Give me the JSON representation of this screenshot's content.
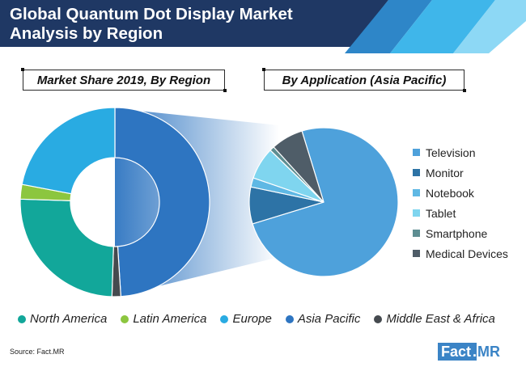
{
  "title": "Global Quantum Dot Display Market Analysis by Region",
  "left_box_label": "Market Share 2019, By Region",
  "right_box_label": "By Application (Asia Pacific)",
  "source": "Source: Fact.MR",
  "logo": {
    "left": "Fact",
    "dot": ".",
    "right": "MR"
  },
  "colors": {
    "banner": "#1f3864",
    "accent_light": "#29abe2",
    "accent_mid": "#5ac8f0"
  },
  "chart_data": [
    {
      "type": "donut",
      "title": "Market Share 2019, By Region",
      "series": [
        {
          "name": "Asia Pacific",
          "value": 49,
          "color": "#2e75c1"
        },
        {
          "name": "Middle East & Africa",
          "value": 1.5,
          "color": "#454a4f"
        },
        {
          "name": "North America",
          "value": 25,
          "color": "#12a79a"
        },
        {
          "name": "Latin America",
          "value": 2.5,
          "color": "#8cc63f"
        },
        {
          "name": "Europe",
          "value": 22,
          "color": "#29abe2"
        }
      ],
      "legend_position": "bottom"
    },
    {
      "type": "pie",
      "title": "By Application (Asia Pacific)",
      "series": [
        {
          "name": "Television",
          "value": 75,
          "color": "#4ea1db"
        },
        {
          "name": "Monitor",
          "value": 8,
          "color": "#2d73a6"
        },
        {
          "name": "Notebook",
          "value": 2,
          "color": "#5fb8e4"
        },
        {
          "name": "Tablet",
          "value": 7,
          "color": "#7fd5ef"
        },
        {
          "name": "Smartphone",
          "value": 1,
          "color": "#5e8e92"
        },
        {
          "name": "Medical Devices",
          "value": 7,
          "color": "#4f5d68"
        }
      ],
      "legend_position": "right"
    }
  ]
}
